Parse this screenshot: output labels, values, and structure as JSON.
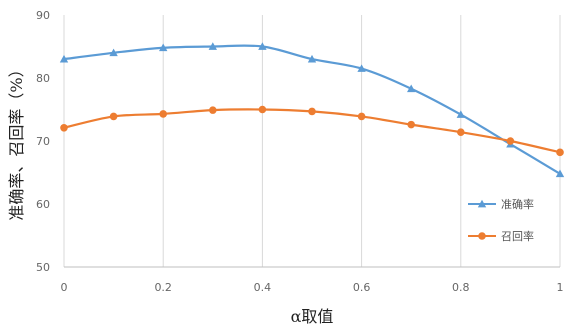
{
  "chart_data": {
    "type": "line",
    "title": "",
    "xlabel": "α取值",
    "ylabel": "准确率、召回率（%）",
    "x": [
      0,
      0.1,
      0.2,
      0.3,
      0.4,
      0.5,
      0.6,
      0.7,
      0.8,
      0.9,
      1
    ],
    "x_ticks": [
      "0",
      "0.2",
      "0.4",
      "0.6",
      "0.8",
      "1"
    ],
    "xlim": [
      0,
      1
    ],
    "y_ticks": [
      "50",
      "60",
      "70",
      "80",
      "90"
    ],
    "ylim": [
      50,
      90
    ],
    "grid": "vertical",
    "legend_position": "right",
    "series": [
      {
        "name": "准确率",
        "marker": "triangle",
        "color": "#5b9bd5",
        "values": [
          83.0,
          84.0,
          84.8,
          85.0,
          85.0,
          83.0,
          81.5,
          78.3,
          74.2,
          69.5,
          64.8
        ]
      },
      {
        "name": "召回率",
        "marker": "circle",
        "color": "#ed7d31",
        "values": [
          72.1,
          73.9,
          74.3,
          74.9,
          75.0,
          74.7,
          73.9,
          72.6,
          71.4,
          70.0,
          68.2
        ]
      }
    ]
  }
}
